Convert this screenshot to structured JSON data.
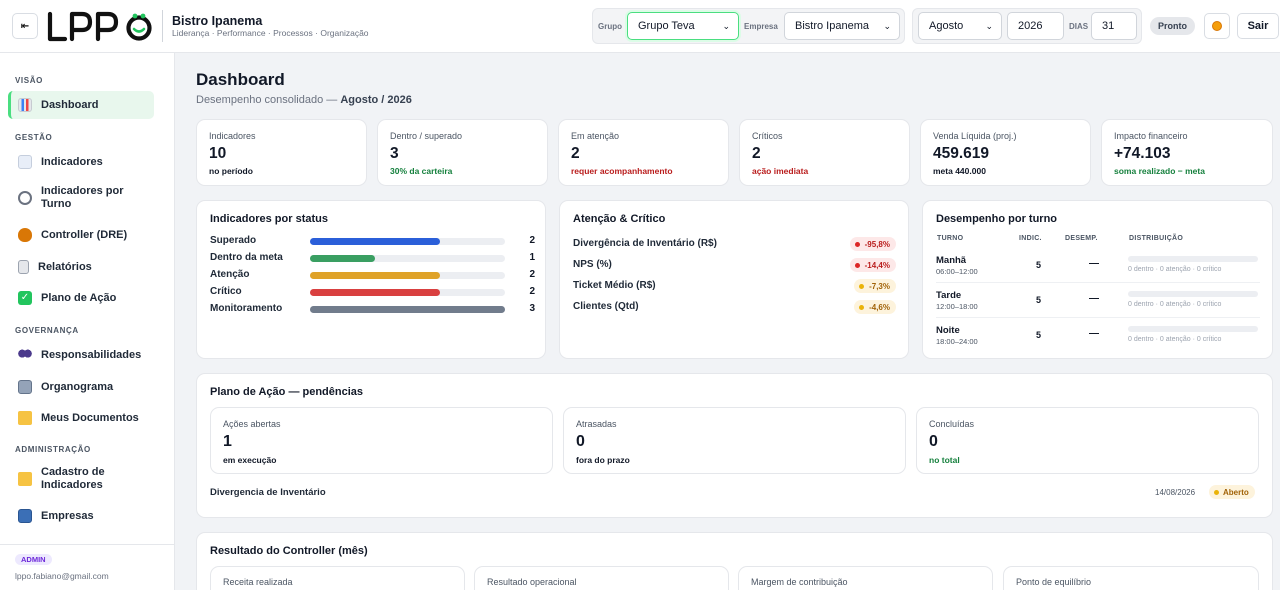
{
  "header": {
    "brand_title": "Bistro Ipanema",
    "brand_subtitle": "Liderança · Performance · Processos · Organização",
    "grupo_label": "Grupo",
    "grupo_value": "Grupo Teva",
    "empresa_label": "Empresa",
    "empresa_value": "Bistro Ipanema",
    "month_value": "Agosto",
    "year_value": "2026",
    "dias_label": "DIAS",
    "dias_value": "31",
    "status_pill": "Pronto",
    "logout_label": "Sair",
    "collapse_icon": "collapse-left-icon",
    "theme_icon": "theme-toggle-icon"
  },
  "sidebar": {
    "sections": [
      {
        "title": "VISÃO",
        "items": [
          {
            "label": "Dashboard",
            "icon": "chart-icon",
            "active": true
          }
        ]
      },
      {
        "title": "GESTÃO",
        "items": [
          {
            "label": "Indicadores",
            "icon": "trend-icon"
          },
          {
            "label": "Indicadores por Turno",
            "icon": "clock-icon"
          },
          {
            "label": "Controller (DRE)",
            "icon": "money-bag-icon"
          },
          {
            "label": "Relatórios",
            "icon": "report-icon"
          },
          {
            "label": "Plano de Ação",
            "icon": "check-icon"
          }
        ]
      },
      {
        "title": "GOVERNANÇA",
        "items": [
          {
            "label": "Responsabilidades",
            "icon": "people-icon"
          },
          {
            "label": "Organograma",
            "icon": "building-icon"
          },
          {
            "label": "Meus Documentos",
            "icon": "folder-icon"
          }
        ]
      },
      {
        "title": "ADMINISTRAÇÃO",
        "items": [
          {
            "label": "Cadastro de Indicadores",
            "icon": "folder-open-icon"
          },
          {
            "label": "Empresas",
            "icon": "office-icon"
          }
        ]
      }
    ],
    "user_role": "ADMIN",
    "user_email": "lppo.fabiano@gmail.com"
  },
  "main": {
    "title": "Dashboard",
    "subtitle_prefix": "Desempenho consolidado —",
    "subtitle_period": "Agosto / 2026",
    "kpis": [
      {
        "label": "Indicadores",
        "value": "10",
        "note": "no período",
        "note_color": "default"
      },
      {
        "label": "Dentro / superado",
        "value": "3",
        "note": "30% da carteira",
        "note_color": "green"
      },
      {
        "label": "Em atenção",
        "value": "2",
        "note": "requer acompanhamento",
        "note_color": "red"
      },
      {
        "label": "Críticos",
        "value": "2",
        "note": "ação imediata",
        "note_color": "red"
      },
      {
        "label": "Venda Líquida (proj.)",
        "value": "459.619",
        "note": "meta 440.000",
        "note_color": "default"
      },
      {
        "label": "Impacto financeiro",
        "value": "+74.103",
        "note": "soma realizado − meta",
        "note_color": "green"
      }
    ],
    "status_card": {
      "title": "Indicadores por status",
      "max": 3,
      "rows": [
        {
          "label": "Superado",
          "count": 2,
          "color": "#2b5fd9"
        },
        {
          "label": "Dentro da meta",
          "count": 1,
          "color": "#3a9f62"
        },
        {
          "label": "Atenção",
          "count": 2,
          "color": "#dfa228"
        },
        {
          "label": "Crítico",
          "count": 2,
          "color": "#d94040"
        },
        {
          "label": "Monitoramento",
          "count": 3,
          "color": "#717c8c"
        }
      ]
    },
    "attention_card": {
      "title": "Atenção & Crítico",
      "rows": [
        {
          "label": "Divergência de Inventário (R$)",
          "value": "-95,8%",
          "level": "red"
        },
        {
          "label": "NPS (%)",
          "value": "-14,4%",
          "level": "red"
        },
        {
          "label": "Ticket Médio (R$)",
          "value": "-7,3%",
          "level": "amber"
        },
        {
          "label": "Clientes (Qtd)",
          "value": "-4,6%",
          "level": "amber"
        }
      ]
    },
    "turno_card": {
      "title": "Desempenho por turno",
      "headers": [
        "TURNO",
        "INDIC.",
        "DESEMP.",
        "DISTRIBUIÇÃO"
      ],
      "rows": [
        {
          "name": "Manhã",
          "time": "06:00–12:00",
          "indic": "5",
          "desemp": "—",
          "dist": "0 dentro · 0 atenção · 0 crítico"
        },
        {
          "name": "Tarde",
          "time": "12:00–18:00",
          "indic": "5",
          "desemp": "—",
          "dist": "0 dentro · 0 atenção · 0 crítico"
        },
        {
          "name": "Noite",
          "time": "18:00–24:00",
          "indic": "5",
          "desemp": "—",
          "dist": "0 dentro · 0 atenção · 0 crítico"
        }
      ]
    },
    "plano": {
      "title": "Plano de Ação — pendências",
      "cards": [
        {
          "label": "Ações abertas",
          "value": "1",
          "note": "em execução",
          "note_color": "default"
        },
        {
          "label": "Atrasadas",
          "value": "0",
          "note": "fora do prazo",
          "note_color": "default"
        },
        {
          "label": "Concluídas",
          "value": "0",
          "note": "no total",
          "note_color": "green"
        }
      ],
      "item_title": "Divergencia de Inventário",
      "item_date": "14/08/2026",
      "item_status": "Aberto"
    },
    "controller": {
      "title": "Resultado do Controller (mês)",
      "cards": [
        "Receita realizada",
        "Resultado operacional",
        "Margem de contribuição",
        "Ponto de equilíbrio"
      ]
    }
  }
}
